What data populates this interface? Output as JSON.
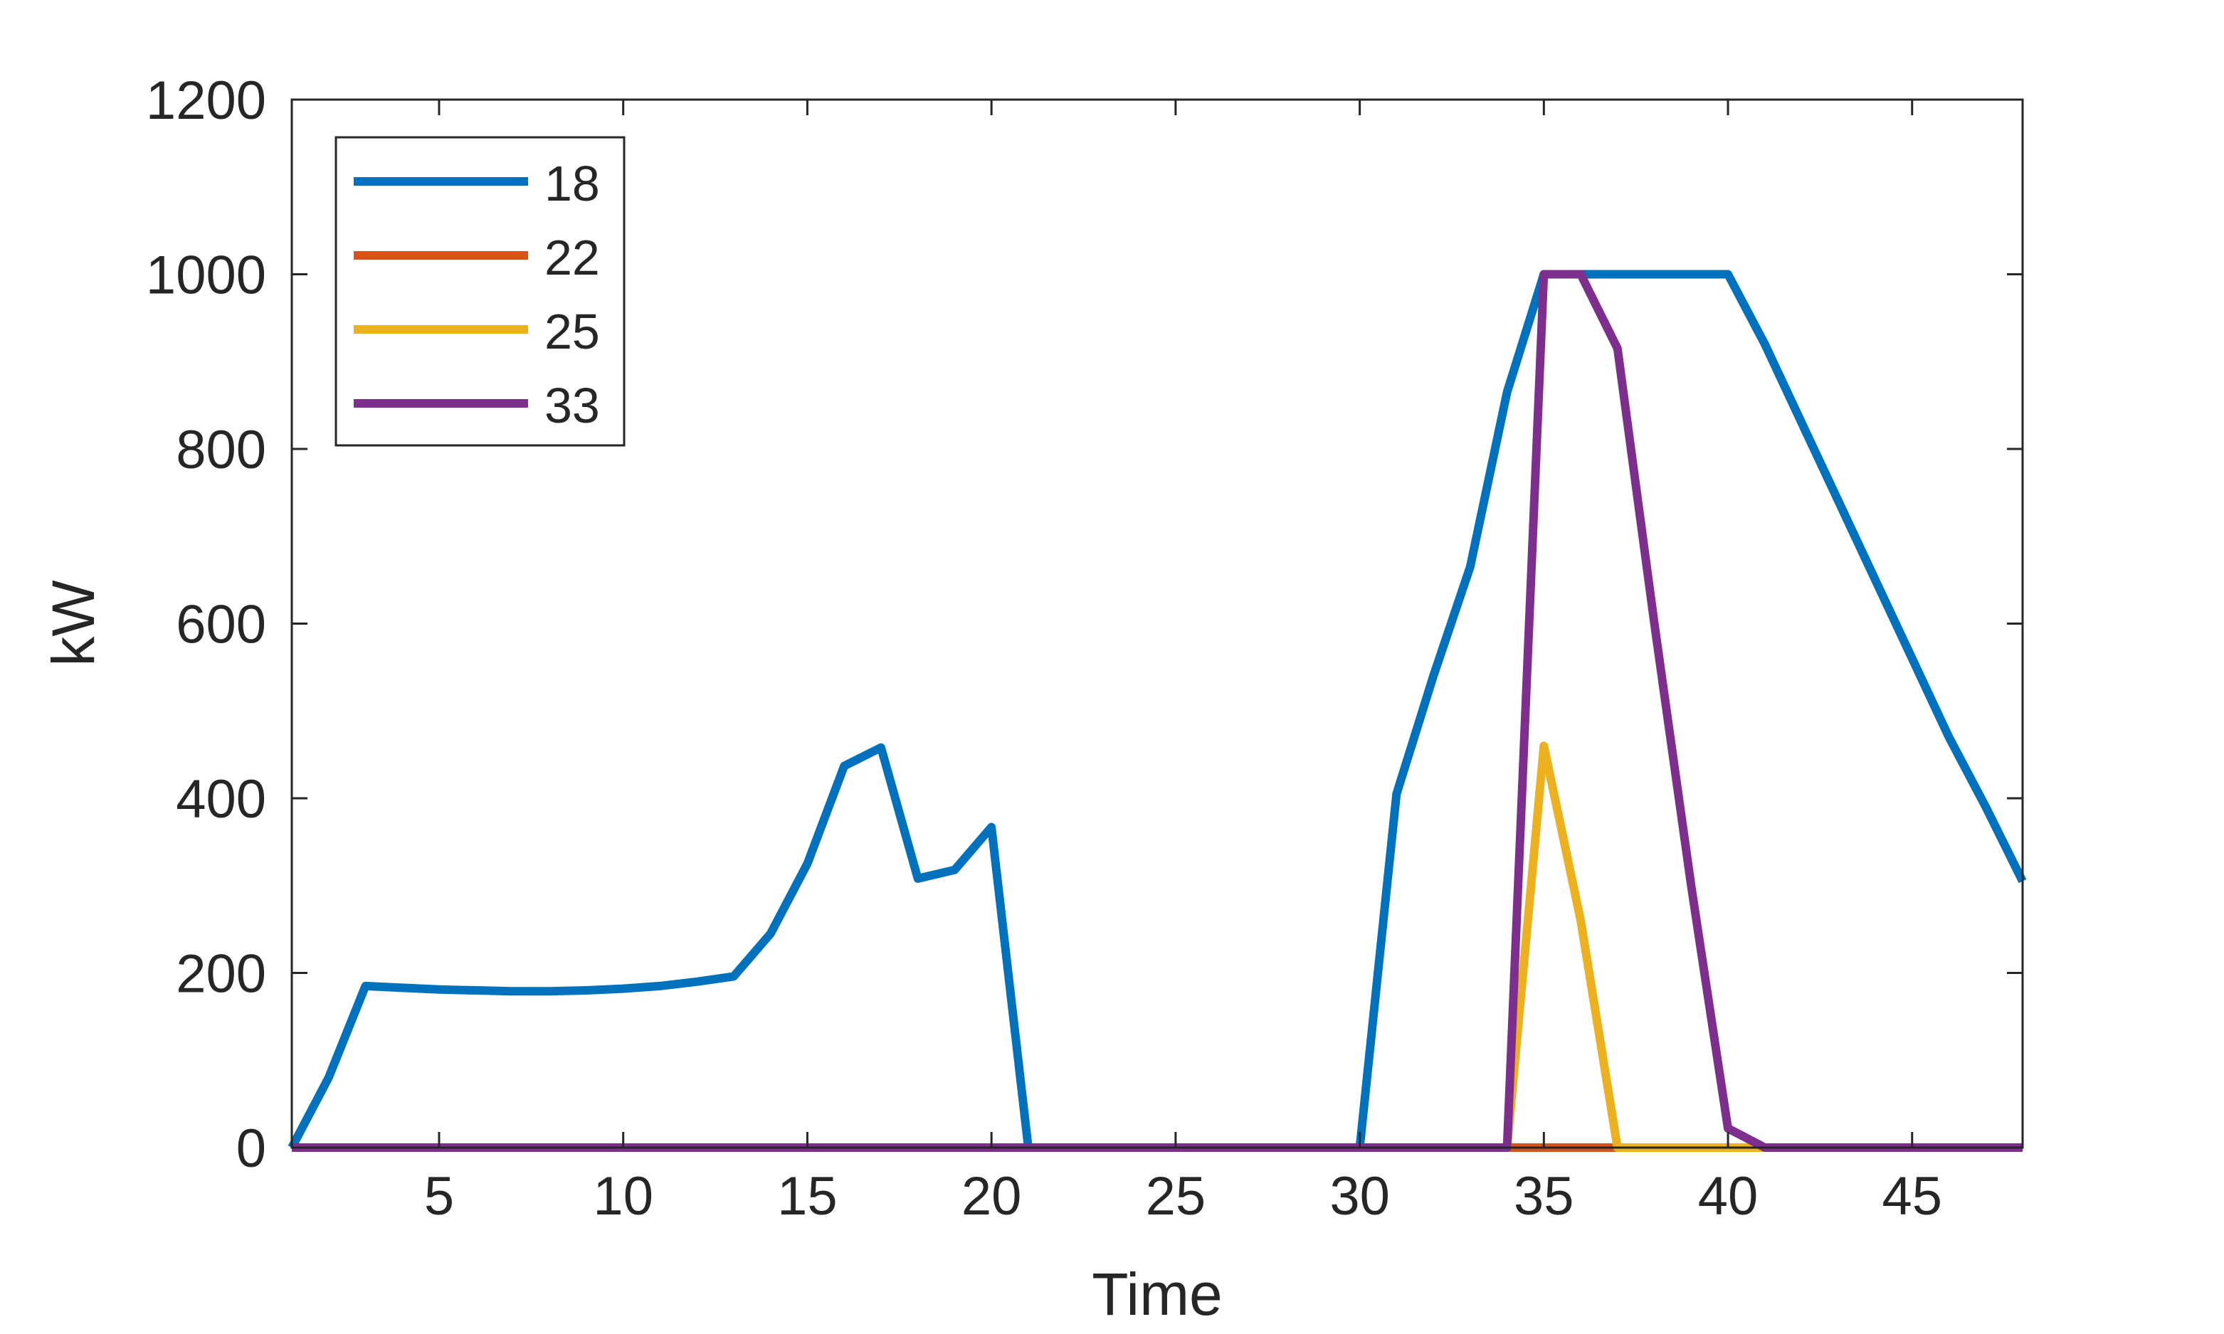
{
  "chart_data": {
    "type": "line",
    "xlabel": "Time",
    "ylabel": "kW",
    "xlim": [
      1,
      48
    ],
    "ylim": [
      0,
      1200
    ],
    "xticks": [
      5,
      10,
      15,
      20,
      25,
      30,
      35,
      40,
      45
    ],
    "yticks": [
      0,
      200,
      400,
      600,
      800,
      1000,
      1200
    ],
    "grid": false,
    "legend_position": "top-left",
    "x": [
      1,
      2,
      3,
      4,
      5,
      6,
      7,
      8,
      9,
      10,
      11,
      12,
      13,
      14,
      15,
      16,
      17,
      18,
      19,
      20,
      21,
      22,
      23,
      24,
      25,
      26,
      27,
      28,
      29,
      30,
      31,
      32,
      33,
      34,
      35,
      36,
      37,
      38,
      39,
      40,
      41,
      42,
      43,
      44,
      45,
      46,
      47,
      48
    ],
    "series": [
      {
        "name": "18",
        "color": "#0072BD",
        "values": [
          0,
          80,
          185,
          183,
          181,
          180,
          179,
          179,
          180,
          182,
          185,
          190,
          196,
          245,
          325,
          437,
          458,
          308,
          318,
          367,
          0,
          0,
          0,
          0,
          0,
          0,
          0,
          0,
          0,
          0,
          405,
          540,
          665,
          865,
          1000,
          1000,
          1000,
          1000,
          1000,
          1000,
          920,
          830,
          740,
          650,
          560,
          470,
          390,
          305
        ]
      },
      {
        "name": "22",
        "color": "#D95319",
        "values": [
          0,
          0,
          0,
          0,
          0,
          0,
          0,
          0,
          0,
          0,
          0,
          0,
          0,
          0,
          0,
          0,
          0,
          0,
          0,
          0,
          0,
          0,
          0,
          0,
          0,
          0,
          0,
          0,
          0,
          0,
          0,
          0,
          0,
          0,
          0,
          0,
          0,
          0,
          0,
          0,
          0,
          0,
          0,
          0,
          0,
          0,
          0,
          0
        ]
      },
      {
        "name": "25",
        "color": "#EDB120",
        "values": [
          0,
          0,
          0,
          0,
          0,
          0,
          0,
          0,
          0,
          0,
          0,
          0,
          0,
          0,
          0,
          0,
          0,
          0,
          0,
          0,
          0,
          0,
          0,
          0,
          0,
          0,
          0,
          0,
          0,
          0,
          0,
          0,
          0,
          0,
          460,
          260,
          0,
          0,
          0,
          0,
          0,
          0,
          0,
          0,
          0,
          0,
          0,
          0
        ]
      },
      {
        "name": "33",
        "color": "#7E2F8E",
        "values": [
          0,
          0,
          0,
          0,
          0,
          0,
          0,
          0,
          0,
          0,
          0,
          0,
          0,
          0,
          0,
          0,
          0,
          0,
          0,
          0,
          0,
          0,
          0,
          0,
          0,
          0,
          0,
          0,
          0,
          0,
          0,
          0,
          0,
          0,
          1000,
          1000,
          915,
          600,
          300,
          22,
          0,
          0,
          0,
          0,
          0,
          0,
          0,
          0
        ]
      }
    ]
  }
}
